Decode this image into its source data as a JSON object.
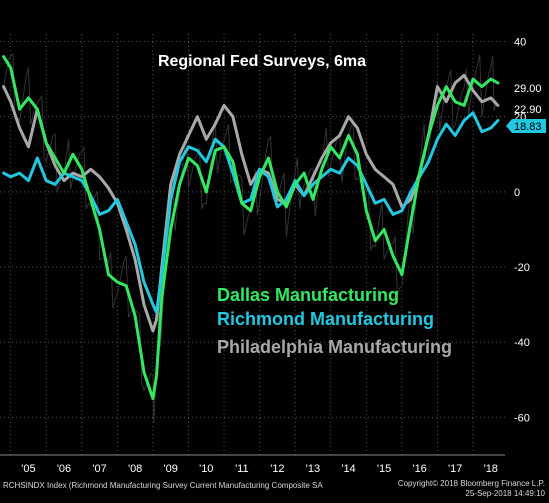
{
  "chart_data": {
    "type": "line",
    "title": "Regional Fed Surveys, 6ma",
    "x_tick_labels": [
      "'05",
      "'06",
      "'07",
      "'08",
      "'09",
      "'10",
      "'11",
      "'12",
      "'13",
      "'14",
      "'15",
      "'16",
      "'17",
      "'18"
    ],
    "y_ticks": [
      40,
      20,
      0,
      -20,
      -40,
      -60
    ],
    "ylim": [
      -70,
      42
    ],
    "xlim": [
      2004.7,
      2018.9
    ],
    "grid": true,
    "legend_position": "center-right",
    "last_value_labels": [
      "29.00",
      "22.90",
      "18.83"
    ],
    "series": [
      {
        "name": "Dallas Manufacturing",
        "color": "#33e860",
        "x": [
          2004.8,
          2005.0,
          2005.25,
          2005.5,
          2005.75,
          2006.0,
          2006.25,
          2006.5,
          2006.75,
          2007.0,
          2007.25,
          2007.5,
          2007.75,
          2008.0,
          2008.25,
          2008.5,
          2008.75,
          2009.0,
          2009.1,
          2009.25,
          2009.5,
          2009.75,
          2010.0,
          2010.25,
          2010.5,
          2010.75,
          2011.0,
          2011.25,
          2011.5,
          2011.75,
          2012.0,
          2012.25,
          2012.5,
          2012.75,
          2013.0,
          2013.25,
          2013.5,
          2013.75,
          2014.0,
          2014.25,
          2014.5,
          2014.75,
          2015.0,
          2015.25,
          2015.5,
          2015.75,
          2016.0,
          2016.25,
          2016.5,
          2016.75,
          2017.0,
          2017.25,
          2017.5,
          2017.75,
          2018.0,
          2018.25,
          2018.5,
          2018.7
        ],
        "values": [
          36,
          33,
          22,
          25,
          22,
          13,
          9,
          5,
          10,
          6,
          -2,
          -10,
          -22,
          -24,
          -25,
          -33,
          -48,
          -55,
          -49,
          -28,
          -10,
          2,
          9,
          7,
          0,
          11,
          12,
          8,
          -3,
          -5,
          4,
          9,
          0,
          -4,
          2,
          5,
          -2,
          6,
          12,
          9,
          15,
          10,
          -5,
          -13,
          -10,
          -17,
          -22,
          -8,
          5,
          15,
          23,
          28,
          24,
          23,
          30,
          28,
          30,
          29
        ]
      },
      {
        "name": "Richmond Manufacturing",
        "color": "#22c8e0",
        "x": [
          2004.8,
          2005.0,
          2005.25,
          2005.5,
          2005.75,
          2006.0,
          2006.25,
          2006.5,
          2006.75,
          2007.0,
          2007.25,
          2007.5,
          2007.75,
          2008.0,
          2008.25,
          2008.5,
          2008.75,
          2009.0,
          2009.1,
          2009.25,
          2009.5,
          2009.75,
          2010.0,
          2010.25,
          2010.5,
          2010.75,
          2011.0,
          2011.25,
          2011.5,
          2011.75,
          2012.0,
          2012.25,
          2012.5,
          2012.75,
          2013.0,
          2013.25,
          2013.5,
          2013.75,
          2014.0,
          2014.25,
          2014.5,
          2014.75,
          2015.0,
          2015.25,
          2015.5,
          2015.75,
          2016.0,
          2016.25,
          2016.5,
          2016.75,
          2017.0,
          2017.25,
          2017.5,
          2017.75,
          2018.0,
          2018.25,
          2018.5,
          2018.7
        ],
        "values": [
          5,
          4,
          5,
          3,
          9,
          3,
          2,
          5,
          4,
          3,
          -1,
          -6,
          -5,
          -2,
          -8,
          -14,
          -24,
          -30,
          -32,
          -22,
          -2,
          8,
          12,
          11,
          8,
          14,
          12,
          5,
          -3,
          -2,
          6,
          4,
          -4,
          -2,
          3,
          -1,
          2,
          4,
          6,
          5,
          9,
          7,
          2,
          -3,
          -2,
          -6,
          -5,
          0,
          4,
          8,
          14,
          18,
          15,
          19,
          21,
          16,
          17,
          19
        ]
      },
      {
        "name": "Philadelphia Manufacturing",
        "color": "#a8a8a8",
        "x": [
          2004.8,
          2005.0,
          2005.25,
          2005.5,
          2005.75,
          2006.0,
          2006.25,
          2006.5,
          2006.75,
          2007.0,
          2007.25,
          2007.5,
          2007.75,
          2008.0,
          2008.25,
          2008.5,
          2008.75,
          2009.0,
          2009.1,
          2009.25,
          2009.5,
          2009.75,
          2010.0,
          2010.25,
          2010.5,
          2010.75,
          2011.0,
          2011.25,
          2011.5,
          2011.75,
          2012.0,
          2012.25,
          2012.5,
          2012.75,
          2013.0,
          2013.25,
          2013.5,
          2013.75,
          2014.0,
          2014.25,
          2014.5,
          2014.75,
          2015.0,
          2015.25,
          2015.5,
          2015.75,
          2016.0,
          2016.25,
          2016.5,
          2016.75,
          2017.0,
          2017.25,
          2017.5,
          2017.75,
          2018.0,
          2018.25,
          2018.5,
          2018.7
        ],
        "values": [
          28,
          24,
          17,
          12,
          22,
          13,
          7,
          3,
          5,
          4,
          6,
          4,
          1,
          -3,
          -10,
          -18,
          -30,
          -37,
          -34,
          -20,
          2,
          10,
          15,
          20,
          14,
          18,
          23,
          20,
          10,
          2,
          6,
          5,
          -2,
          -3,
          2,
          -1,
          4,
          9,
          13,
          15,
          20,
          17,
          10,
          6,
          4,
          2,
          -4,
          -2,
          5,
          15,
          28,
          24,
          29,
          31,
          27,
          24,
          25,
          23
        ]
      }
    ]
  },
  "footer": {
    "source": "RCHSINDX Index (Richmond Manufacturing Survey Current Manufacturing Composite SA",
    "copyright": "Copyright© 2018 Bloomberg Finance L.P.",
    "timestamp": "25-Sep-2018 14:49:10"
  },
  "colors": {
    "background": "#000000",
    "grid": "#555555",
    "axis_text": "#ffffff",
    "title": "#ffffff",
    "noise": "#333333"
  }
}
